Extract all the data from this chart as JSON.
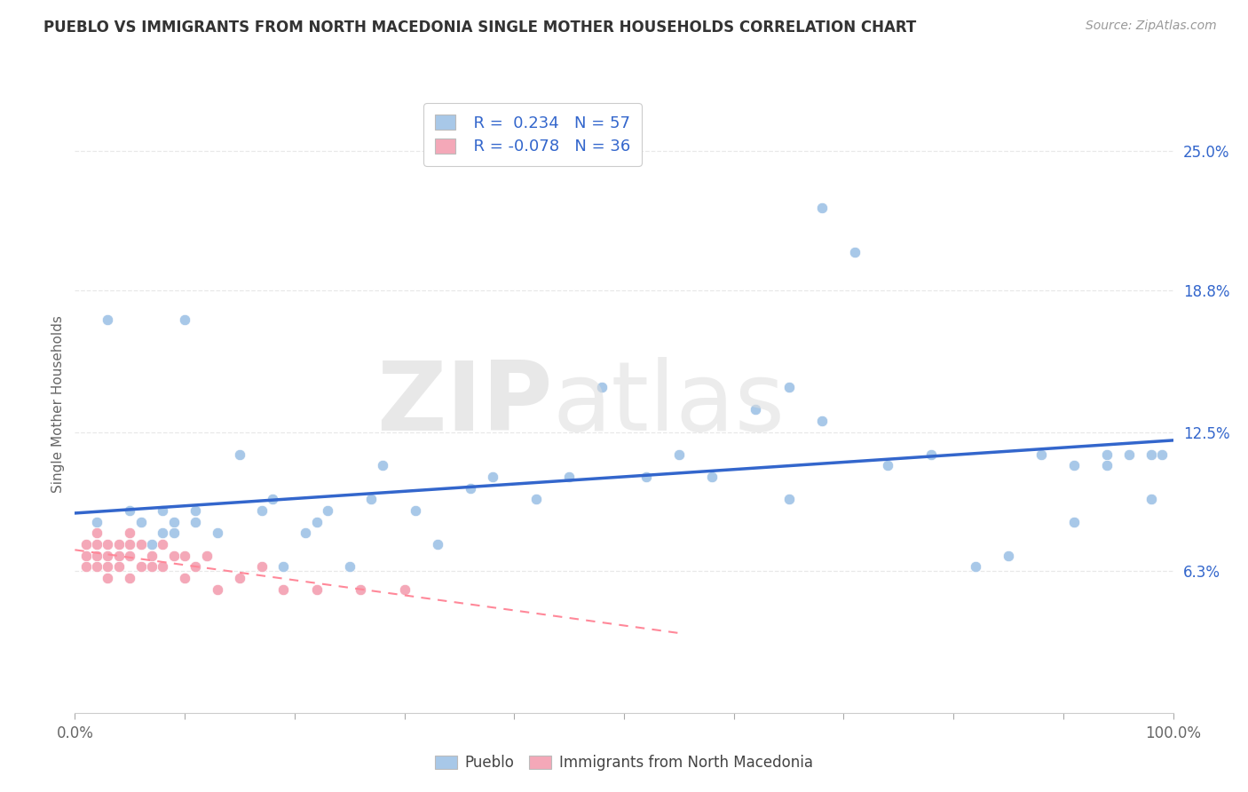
{
  "title": "PUEBLO VS IMMIGRANTS FROM NORTH MACEDONIA SINGLE MOTHER HOUSEHOLDS CORRELATION CHART",
  "source": "Source: ZipAtlas.com",
  "ylabel": "Single Mother Households",
  "color_blue": "#A8C8E8",
  "color_pink": "#F4A8B8",
  "color_line_blue": "#3366CC",
  "color_line_pink": "#FF8899",
  "background": "#FFFFFF",
  "grid_color": "#E8E8E8",
  "r_val_color": "#3366CC",
  "n_val_color": "#3366CC",
  "xlim": [
    0.0,
    1.0
  ],
  "ylim": [
    0.0,
    0.275
  ],
  "y_ticks": [
    0.063,
    0.125,
    0.188,
    0.25
  ],
  "y_tick_labels": [
    "6.3%",
    "12.5%",
    "18.8%",
    "25.0%"
  ],
  "pueblo_x": [
    0.02,
    0.03,
    0.04,
    0.05,
    0.05,
    0.06,
    0.06,
    0.07,
    0.07,
    0.08,
    0.08,
    0.09,
    0.09,
    0.1,
    0.11,
    0.11,
    0.12,
    0.13,
    0.15,
    0.17,
    0.18,
    0.19,
    0.21,
    0.22,
    0.23,
    0.25,
    0.27,
    0.28,
    0.31,
    0.33,
    0.36,
    0.38,
    0.42,
    0.45,
    0.48,
    0.52,
    0.55,
    0.58,
    0.62,
    0.65,
    0.68,
    0.71,
    0.74,
    0.78,
    0.82,
    0.85,
    0.88,
    0.91,
    0.94,
    0.96,
    0.98,
    0.99,
    0.65,
    0.68,
    0.91,
    0.94,
    0.98
  ],
  "pueblo_y": [
    0.085,
    0.175,
    0.07,
    0.075,
    0.09,
    0.075,
    0.085,
    0.075,
    0.065,
    0.09,
    0.08,
    0.085,
    0.08,
    0.175,
    0.085,
    0.09,
    0.07,
    0.08,
    0.115,
    0.09,
    0.095,
    0.065,
    0.08,
    0.085,
    0.09,
    0.065,
    0.095,
    0.11,
    0.09,
    0.075,
    0.1,
    0.105,
    0.095,
    0.105,
    0.145,
    0.105,
    0.115,
    0.105,
    0.135,
    0.095,
    0.225,
    0.205,
    0.11,
    0.115,
    0.065,
    0.07,
    0.115,
    0.085,
    0.115,
    0.115,
    0.115,
    0.115,
    0.145,
    0.13,
    0.11,
    0.11,
    0.095
  ],
  "macedonia_x": [
    0.01,
    0.01,
    0.01,
    0.02,
    0.02,
    0.02,
    0.02,
    0.03,
    0.03,
    0.03,
    0.03,
    0.04,
    0.04,
    0.04,
    0.05,
    0.05,
    0.05,
    0.05,
    0.06,
    0.06,
    0.07,
    0.07,
    0.08,
    0.08,
    0.09,
    0.1,
    0.1,
    0.11,
    0.12,
    0.13,
    0.15,
    0.17,
    0.19,
    0.22,
    0.26,
    0.3
  ],
  "macedonia_y": [
    0.075,
    0.07,
    0.065,
    0.08,
    0.075,
    0.07,
    0.065,
    0.075,
    0.07,
    0.065,
    0.06,
    0.075,
    0.07,
    0.065,
    0.08,
    0.075,
    0.07,
    0.06,
    0.075,
    0.065,
    0.07,
    0.065,
    0.075,
    0.065,
    0.07,
    0.07,
    0.06,
    0.065,
    0.07,
    0.055,
    0.06,
    0.065,
    0.055,
    0.055,
    0.055,
    0.055
  ]
}
